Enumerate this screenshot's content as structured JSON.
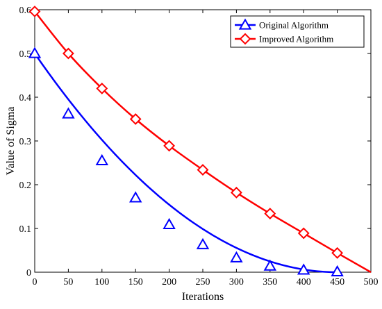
{
  "chart_data": {
    "type": "line",
    "title": "",
    "xlabel": "Iterations",
    "ylabel": "Value of Sigma",
    "xlim": [
      0,
      500
    ],
    "ylim": [
      0,
      0.6
    ],
    "xticks": [
      0,
      50,
      100,
      150,
      200,
      250,
      300,
      350,
      400,
      450,
      500
    ],
    "yticks": [
      0,
      0.1,
      0.2,
      0.3,
      0.4,
      0.5,
      0.6
    ],
    "grid": false,
    "legend_position": "top-right",
    "series": [
      {
        "name": "Original Algorithm",
        "color": "#0000ff",
        "marker": "triangle",
        "curve": "quadratic-decay",
        "start": 0.5,
        "end_x": 450,
        "x": [
          0,
          50,
          100,
          150,
          200,
          250,
          300,
          350,
          400,
          450
        ],
        "y": [
          0.5,
          0.362,
          0.255,
          0.17,
          0.109,
          0.063,
          0.033,
          0.014,
          0.005,
          0.001
        ]
      },
      {
        "name": "Improved Algorithm",
        "color": "#ff0000",
        "marker": "diamond",
        "curve": "smooth",
        "x": [
          0,
          50,
          100,
          150,
          200,
          250,
          300,
          350,
          400,
          450,
          500
        ],
        "y": [
          0.596,
          0.5,
          0.42,
          0.35,
          0.289,
          0.234,
          0.182,
          0.134,
          0.089,
          0.044,
          0.0
        ],
        "marker_x": [
          0,
          50,
          100,
          150,
          200,
          250,
          300,
          350,
          400,
          450
        ]
      }
    ]
  }
}
